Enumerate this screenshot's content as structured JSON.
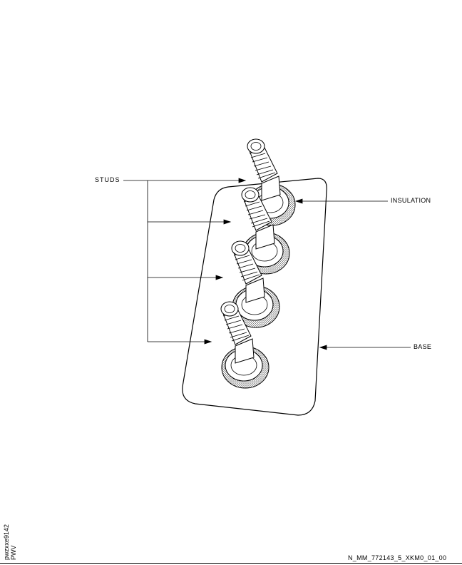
{
  "labels": {
    "studs": "STUDS",
    "insulation": "INSULATION",
    "base": "BASE"
  },
  "side_code": {
    "line1": "pwzxxe9142",
    "line2": "PWV"
  },
  "figure_id": "N_MM_772143_5_XKM0_01_00",
  "colors": {
    "line": "#000000",
    "background": "#ffffff",
    "insulation_fill": "#9a9a9a"
  }
}
